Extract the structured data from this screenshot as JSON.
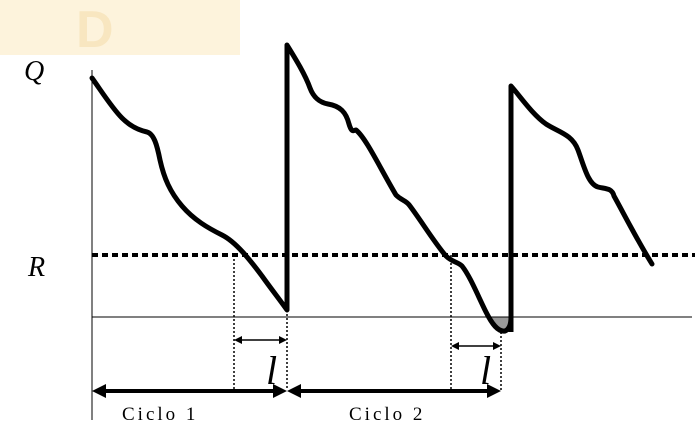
{
  "labels": {
    "q_label": "Q",
    "r_label": "R",
    "lead_time_label_1": "l",
    "lead_time_label_2": "l",
    "cycle_1_label": "Ciclo 1",
    "cycle_2_label": "Ciclo 2"
  },
  "colors": {
    "line": "#000000",
    "watermark": "#fdf3dc",
    "shortage_fill": "#9a9a9a"
  }
}
